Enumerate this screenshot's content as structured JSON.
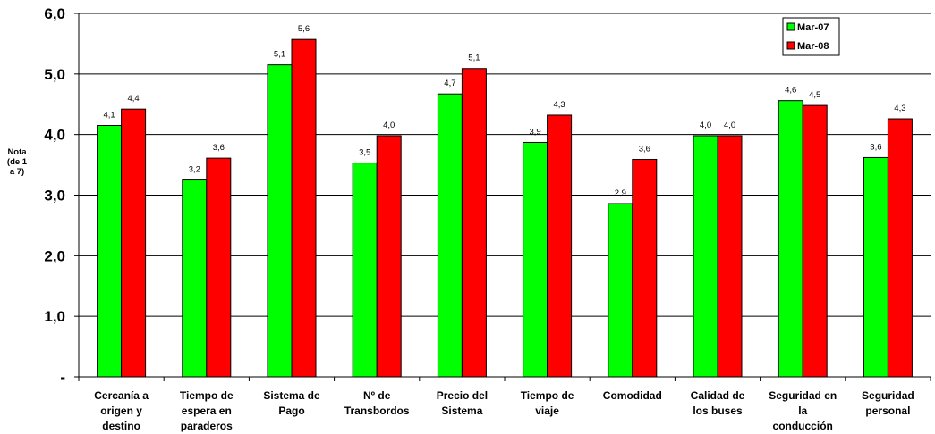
{
  "chart_data": {
    "type": "bar",
    "ylabel": [
      "Nota",
      "(de 1",
      "a 7)"
    ],
    "ylim": [
      0,
      6
    ],
    "yticks": [
      "-",
      "1,0",
      "2,0",
      "3,0",
      "4,0",
      "5,0",
      "6,0"
    ],
    "grid": true,
    "legend_position": "top-right",
    "categories": [
      [
        "Cercanía a",
        "origen y",
        "destino"
      ],
      [
        "Tiempo de",
        "espera en",
        "paraderos"
      ],
      [
        "Sistema de",
        "Pago"
      ],
      [
        "Nº de",
        "Transbordos"
      ],
      [
        "Precio del",
        "Sistema"
      ],
      [
        "Tiempo de",
        "viaje"
      ],
      [
        "Comodidad"
      ],
      [
        "Calidad de",
        "los buses"
      ],
      [
        "Seguridad en",
        "la",
        "conducción"
      ],
      [
        "Seguridad",
        "personal"
      ]
    ],
    "series": [
      {
        "name": "Mar-07",
        "color": "#00ff00",
        "values": [
          4.15,
          3.25,
          5.15,
          3.53,
          4.67,
          3.87,
          2.86,
          3.98,
          4.56,
          3.62
        ],
        "labels": [
          "4,1",
          "3,2",
          "5,1",
          "3,5",
          "4,7",
          "3,9",
          "2,9",
          "4,0",
          "4,6",
          "3,6"
        ]
      },
      {
        "name": "Mar-08",
        "color": "#ff0000",
        "values": [
          4.42,
          3.61,
          5.57,
          3.98,
          5.09,
          4.32,
          3.59,
          3.98,
          4.48,
          4.26
        ],
        "labels": [
          "4,4",
          "3,6",
          "5,6",
          "4,0",
          "5,1",
          "4,3",
          "3,6",
          "4,0",
          "4,5",
          "4,3"
        ]
      }
    ]
  }
}
